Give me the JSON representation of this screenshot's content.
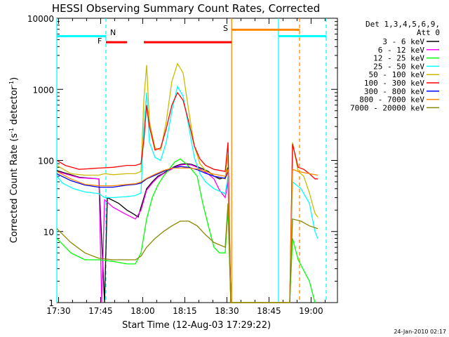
{
  "chart_data": {
    "type": "line",
    "title": "HESSI Observing Summary Count Rates, Corrected",
    "xlabel": "Start Time (12-Aug-03 17:29:22)",
    "ylabel_main": "Corrected Count Rate (s",
    "ylabel_exp1": "-1",
    "ylabel_mid": " detector",
    "ylabel_exp2": "-1",
    "ylabel_end": ")",
    "y_scale": "log",
    "ylim": [
      1,
      10000
    ],
    "xlim_min": [
      0,
      100
    ],
    "x_ticks": [
      {
        "min": 0.6,
        "label": "17:30"
      },
      {
        "min": 15.6,
        "label": "17:45"
      },
      {
        "min": 30.6,
        "label": "18:00"
      },
      {
        "min": 45.6,
        "label": "18:15"
      },
      {
        "min": 60.6,
        "label": "18:30"
      },
      {
        "min": 75.6,
        "label": "18:45"
      },
      {
        "min": 90.6,
        "label": "19:00"
      }
    ],
    "y_ticks": [
      {
        "value": 1,
        "label": "1"
      },
      {
        "value": 10,
        "label": "10"
      },
      {
        "value": 100,
        "label": "100"
      },
      {
        "value": 1000,
        "label": "1000"
      },
      {
        "value": 10000,
        "label": "10000"
      }
    ],
    "legend_title_1": "Det 1,3,4,5,6,9,",
    "legend_title_2": "Att 0",
    "series": [
      {
        "name": "3 - 6 keV",
        "color": "#000000",
        "points": [
          [
            0,
            72
          ],
          [
            8,
            58
          ],
          [
            15,
            55
          ],
          [
            17,
            1
          ],
          [
            18,
            30
          ],
          [
            22,
            25
          ],
          [
            25,
            20
          ],
          [
            27,
            18
          ],
          [
            29,
            16
          ],
          [
            30,
            22
          ],
          [
            32,
            40
          ],
          [
            34,
            50
          ],
          [
            36,
            60
          ],
          [
            38,
            66
          ],
          [
            40,
            74
          ],
          [
            42,
            82
          ],
          [
            44,
            88
          ],
          [
            46,
            90
          ],
          [
            48,
            88
          ],
          [
            50,
            82
          ],
          [
            52,
            76
          ],
          [
            54,
            70
          ],
          [
            56,
            60
          ],
          [
            58,
            55
          ],
          [
            60,
            57
          ],
          [
            61,
            80
          ],
          [
            62,
            1
          ]
        ]
      },
      {
        "name": "6 - 12 keV",
        "color": "#ff00ff",
        "points": [
          [
            0,
            70
          ],
          [
            8,
            57
          ],
          [
            15,
            55
          ],
          [
            16,
            1
          ],
          [
            17,
            28
          ],
          [
            20,
            22
          ],
          [
            24,
            18
          ],
          [
            28,
            15
          ],
          [
            30,
            20
          ],
          [
            32,
            38
          ],
          [
            34,
            48
          ],
          [
            36,
            58
          ],
          [
            38,
            65
          ],
          [
            40,
            72
          ],
          [
            42,
            80
          ],
          [
            44,
            86
          ],
          [
            46,
            88
          ],
          [
            48,
            86
          ],
          [
            50,
            80
          ],
          [
            52,
            72
          ],
          [
            54,
            64
          ],
          [
            56,
            55
          ],
          [
            58,
            38
          ],
          [
            60,
            30
          ],
          [
            61,
            50
          ],
          [
            62,
            1
          ]
        ]
      },
      {
        "name": "12 - 25 keV",
        "color": "#00ff00",
        "points": [
          [
            0,
            8
          ],
          [
            5,
            5
          ],
          [
            10,
            4
          ],
          [
            15,
            4
          ],
          [
            20,
            3.8
          ],
          [
            25,
            3.5
          ],
          [
            28,
            3.5
          ],
          [
            30,
            5
          ],
          [
            32,
            15
          ],
          [
            34,
            30
          ],
          [
            36,
            45
          ],
          [
            38,
            60
          ],
          [
            40,
            75
          ],
          [
            42,
            95
          ],
          [
            44,
            105
          ],
          [
            46,
            90
          ],
          [
            48,
            75
          ],
          [
            50,
            60
          ],
          [
            52,
            25
          ],
          [
            54,
            12
          ],
          [
            56,
            6
          ],
          [
            58,
            5
          ],
          [
            60,
            5
          ],
          [
            61,
            20
          ],
          [
            62,
            1
          ],
          [
            83,
            1
          ],
          [
            84,
            8
          ],
          [
            86,
            4
          ],
          [
            90,
            2
          ],
          [
            92,
            1
          ]
        ]
      },
      {
        "name": "25 - 50 keV",
        "color": "#00ffff",
        "points": [
          [
            0,
            60
          ],
          [
            2,
            48
          ],
          [
            6,
            40
          ],
          [
            10,
            36
          ],
          [
            15,
            34
          ],
          [
            17,
            30
          ],
          [
            20,
            30
          ],
          [
            25,
            31
          ],
          [
            28,
            32
          ],
          [
            30,
            35
          ],
          [
            31,
            300
          ],
          [
            32,
            900
          ],
          [
            33,
            180
          ],
          [
            35,
            110
          ],
          [
            37,
            100
          ],
          [
            39,
            180
          ],
          [
            41,
            500
          ],
          [
            43,
            1100
          ],
          [
            45,
            800
          ],
          [
            47,
            300
          ],
          [
            49,
            110
          ],
          [
            51,
            65
          ],
          [
            53,
            50
          ],
          [
            56,
            40
          ],
          [
            60,
            34
          ],
          [
            61,
            60
          ],
          [
            62,
            1
          ],
          [
            83,
            1
          ],
          [
            84,
            50
          ],
          [
            87,
            40
          ],
          [
            90,
            25
          ],
          [
            92,
            10
          ],
          [
            93,
            8
          ]
        ]
      },
      {
        "name": "50 - 100 keV",
        "color": "#ccbb00",
        "points": [
          [
            0,
            85
          ],
          [
            5,
            65
          ],
          [
            10,
            62
          ],
          [
            15,
            62
          ],
          [
            17,
            65
          ],
          [
            20,
            63
          ],
          [
            25,
            65
          ],
          [
            28,
            65
          ],
          [
            30,
            70
          ],
          [
            31,
            700
          ],
          [
            32,
            2200
          ],
          [
            33,
            350
          ],
          [
            35,
            150
          ],
          [
            37,
            140
          ],
          [
            39,
            350
          ],
          [
            41,
            1300
          ],
          [
            43,
            2300
          ],
          [
            45,
            1700
          ],
          [
            47,
            500
          ],
          [
            49,
            160
          ],
          [
            51,
            90
          ],
          [
            53,
            72
          ],
          [
            56,
            60
          ],
          [
            60,
            55
          ],
          [
            61,
            120
          ],
          [
            62,
            1
          ],
          [
            83,
            1
          ],
          [
            84,
            180
          ],
          [
            86,
            70
          ],
          [
            88,
            60
          ],
          [
            90,
            35
          ],
          [
            92,
            18
          ],
          [
            93,
            16
          ]
        ]
      },
      {
        "name": "100 - 300 keV",
        "color": "#ff0000",
        "points": [
          [
            0,
            100
          ],
          [
            3,
            85
          ],
          [
            8,
            75
          ],
          [
            15,
            78
          ],
          [
            20,
            80
          ],
          [
            25,
            85
          ],
          [
            28,
            85
          ],
          [
            30,
            90
          ],
          [
            31,
            190
          ],
          [
            32,
            600
          ],
          [
            33,
            300
          ],
          [
            35,
            140
          ],
          [
            37,
            150
          ],
          [
            39,
            280
          ],
          [
            41,
            600
          ],
          [
            43,
            900
          ],
          [
            45,
            700
          ],
          [
            47,
            350
          ],
          [
            49,
            160
          ],
          [
            51,
            105
          ],
          [
            53,
            85
          ],
          [
            56,
            75
          ],
          [
            60,
            70
          ],
          [
            61,
            180
          ],
          [
            62,
            1
          ],
          [
            83,
            1
          ],
          [
            84,
            170
          ],
          [
            86,
            80
          ],
          [
            88,
            75
          ],
          [
            90,
            65
          ],
          [
            92,
            55
          ],
          [
            93,
            55
          ]
        ]
      },
      {
        "name": "300 - 800 keV",
        "color": "#0000ff",
        "points": [
          [
            0,
            65
          ],
          [
            5,
            52
          ],
          [
            10,
            45
          ],
          [
            15,
            42
          ],
          [
            20,
            42
          ],
          [
            25,
            45
          ],
          [
            28,
            46
          ],
          [
            30,
            48
          ],
          [
            32,
            55
          ],
          [
            35,
            62
          ],
          [
            38,
            70
          ],
          [
            41,
            78
          ],
          [
            44,
            82
          ],
          [
            47,
            80
          ],
          [
            50,
            74
          ],
          [
            53,
            66
          ],
          [
            56,
            60
          ],
          [
            60,
            56
          ],
          [
            61,
            70
          ],
          [
            62,
            1
          ]
        ]
      },
      {
        "name": "800 - 7000 keV",
        "color": "#ff8800",
        "points": [
          [
            0,
            70
          ],
          [
            5,
            55
          ],
          [
            10,
            46
          ],
          [
            15,
            44
          ],
          [
            20,
            44
          ],
          [
            25,
            46
          ],
          [
            28,
            47
          ],
          [
            30,
            50
          ],
          [
            32,
            56
          ],
          [
            35,
            64
          ],
          [
            38,
            72
          ],
          [
            41,
            78
          ],
          [
            44,
            78
          ],
          [
            47,
            78
          ],
          [
            50,
            76
          ],
          [
            53,
            70
          ],
          [
            56,
            64
          ],
          [
            60,
            60
          ],
          [
            61,
            75
          ],
          [
            62,
            1
          ],
          [
            83,
            1
          ],
          [
            84,
            75
          ],
          [
            86,
            70
          ],
          [
            90,
            65
          ],
          [
            93,
            62
          ]
        ]
      },
      {
        "name": "7000 - 20000 keV",
        "color": "#888800",
        "points": [
          [
            0,
            11
          ],
          [
            5,
            7
          ],
          [
            10,
            5
          ],
          [
            15,
            4.2
          ],
          [
            20,
            4
          ],
          [
            25,
            4
          ],
          [
            28,
            4
          ],
          [
            30,
            4.5
          ],
          [
            32,
            6
          ],
          [
            35,
            8
          ],
          [
            38,
            10
          ],
          [
            41,
            12
          ],
          [
            44,
            14
          ],
          [
            47,
            14
          ],
          [
            50,
            12
          ],
          [
            53,
            9
          ],
          [
            56,
            7
          ],
          [
            60,
            6
          ],
          [
            61,
            25
          ],
          [
            62,
            1
          ],
          [
            83,
            1
          ],
          [
            84,
            15
          ],
          [
            87,
            14
          ],
          [
            90,
            12
          ],
          [
            93,
            11
          ]
        ]
      }
    ],
    "annotations": [
      {
        "text": "N",
        "color": "#00ffff"
      },
      {
        "text": "F",
        "color": "#ff0000"
      },
      {
        "text": "S",
        "color": "#ff8800"
      }
    ],
    "footer_date": "24-Jan-2010 02:17"
  }
}
